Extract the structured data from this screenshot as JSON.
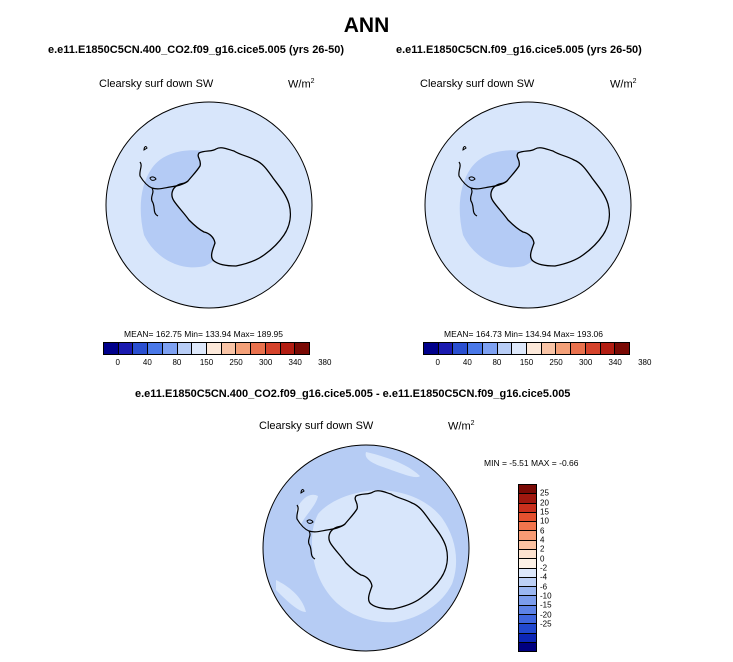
{
  "figure": {
    "title": "ANN"
  },
  "panels": {
    "left": {
      "case": "e.e11.E1850C5CN.400_CO2.f09_g16.cice5.005 (yrs 26-50)",
      "variable": "Clearsky surf down SW",
      "unit_base": "W/m",
      "unit_exp": "2",
      "stats": "MEAN= 162.75  Min= 133.94  Max= 189.95"
    },
    "right": {
      "case": "e.e11.E1850C5CN.f09_g16.cice5.005 (yrs 26-50)",
      "variable": "Clearsky surf down SW",
      "unit_base": "W/m",
      "unit_exp": "2",
      "stats": "MEAN= 164.73  Min= 134.94  Max= 193.06"
    },
    "diff": {
      "case": "e.e11.E1850C5CN.400_CO2.f09_g16.cice5.005 - e.e11.E1850C5CN.f09_g16.cice5.005",
      "variable": "Clearsky surf down SW",
      "unit_base": "W/m",
      "unit_exp": "2",
      "stats": "MIN =  -5.51 MAX =  -0.66"
    }
  },
  "colorbar_abs": {
    "colors": [
      "#00008b",
      "#1a1ab0",
      "#2a4fd0",
      "#4a78e8",
      "#7ea1f2",
      "#b8cdf6",
      "#dde8fb",
      "#fde9da",
      "#f9c4a6",
      "#f4a078",
      "#e9714d",
      "#d5432b",
      "#b21d12",
      "#7a0a05"
    ],
    "labels": [
      "0",
      "40",
      "80",
      "150",
      "250",
      "300",
      "340",
      "380"
    ]
  },
  "colorbar_diff": {
    "colors": [
      "#7a0a05",
      "#a0180f",
      "#c9301d",
      "#e4512f",
      "#f2754d",
      "#f79b74",
      "#fbc2a2",
      "#fde2cf",
      "#fdf1e6",
      "#dde8fb",
      "#bcd0f6",
      "#9ab6f1",
      "#7b9cec",
      "#5d82e6",
      "#3f66de",
      "#2148cf",
      "#0c26b6",
      "#000080"
    ],
    "labels": [
      "25",
      "20",
      "15",
      "10",
      "6",
      "4",
      "2",
      "0",
      "-2",
      "-4",
      "-6",
      "-10",
      "-15",
      "-20",
      "-25"
    ]
  },
  "map_colors": {
    "left": {
      "outer": "#d8e6fb",
      "inner": "#b4cbf5",
      "land": "#d8e6fb"
    },
    "right": {
      "outer": "#d8e6fb",
      "inner": "#b4cbf5",
      "land": "#d8e6fb"
    },
    "diff": {
      "outer": "#b6ccf4",
      "band": "#d8e6fb",
      "land": "#d8e6fb"
    }
  }
}
